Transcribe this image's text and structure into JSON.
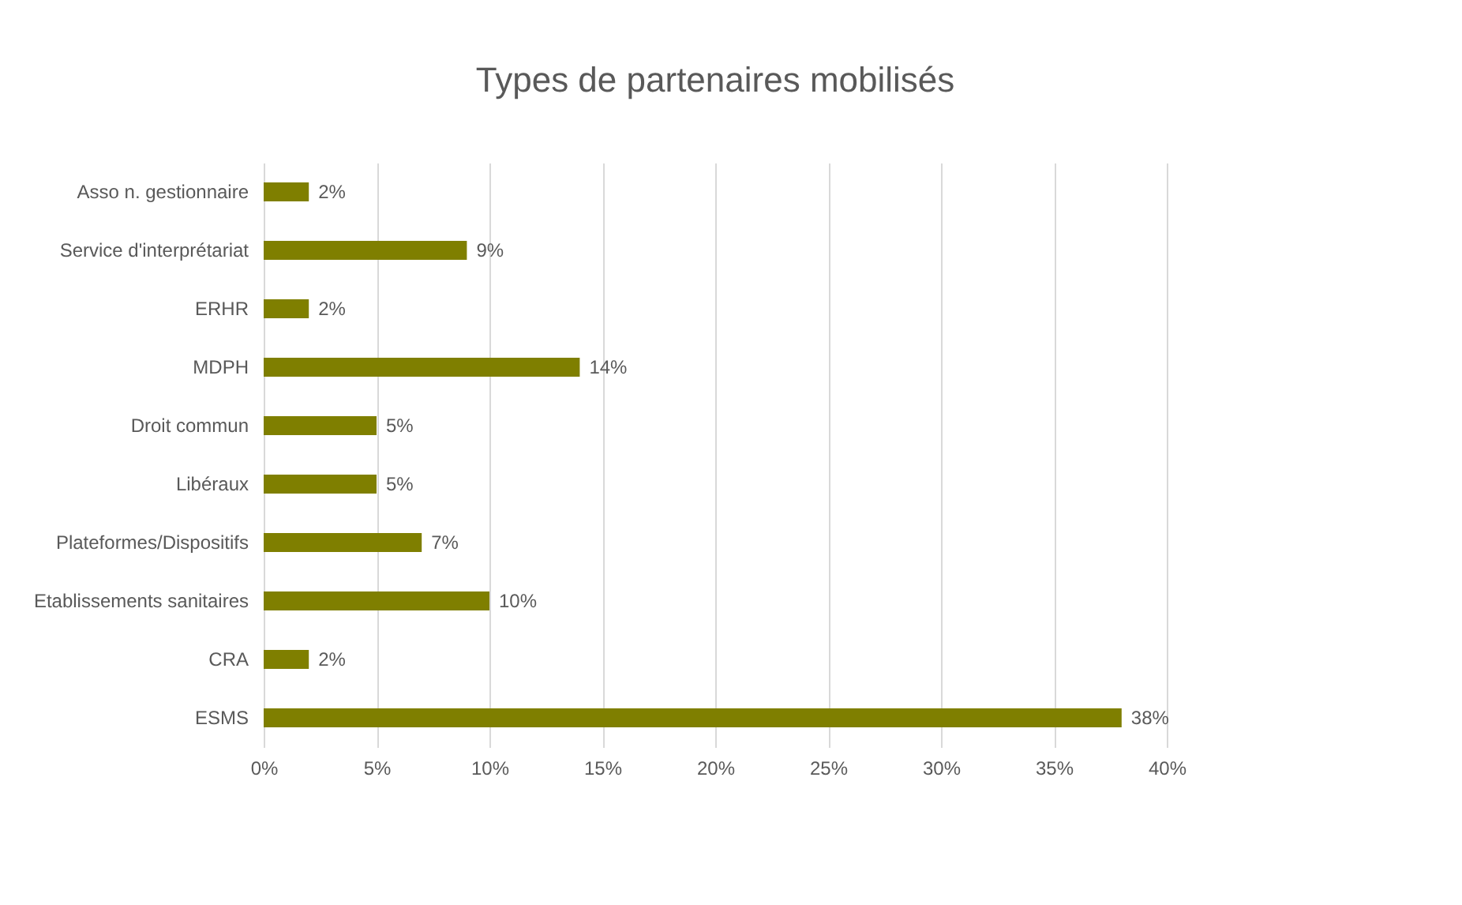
{
  "chart_data": {
    "type": "bar",
    "orientation": "horizontal",
    "title": "Types de partenaires mobilisés",
    "categories": [
      "Asso n. gestionnaire",
      "Service d'interprétariat",
      "ERHR",
      "MDPH",
      "Droit commun",
      "Libéraux",
      "Plateformes/Dispositifs",
      "Etablissements sanitaires",
      "CRA",
      "ESMS"
    ],
    "values": [
      2,
      9,
      2,
      14,
      5,
      5,
      7,
      10,
      2,
      38
    ],
    "value_labels": [
      "2%",
      "9%",
      "2%",
      "14%",
      "5%",
      "5%",
      "7%",
      "10%",
      "2%",
      "38%"
    ],
    "color": "#7f7f00",
    "xlim": [
      0,
      40
    ],
    "xticks": [
      {
        "value": 0,
        "label": "0%"
      },
      {
        "value": 5,
        "label": "5%"
      },
      {
        "value": 10,
        "label": "10%"
      },
      {
        "value": 15,
        "label": "15%"
      },
      {
        "value": 20,
        "label": "20%"
      },
      {
        "value": 25,
        "label": "25%"
      },
      {
        "value": 30,
        "label": "30%"
      },
      {
        "value": 35,
        "label": "35%"
      },
      {
        "value": 40,
        "label": "40%"
      }
    ],
    "grid": "x"
  }
}
